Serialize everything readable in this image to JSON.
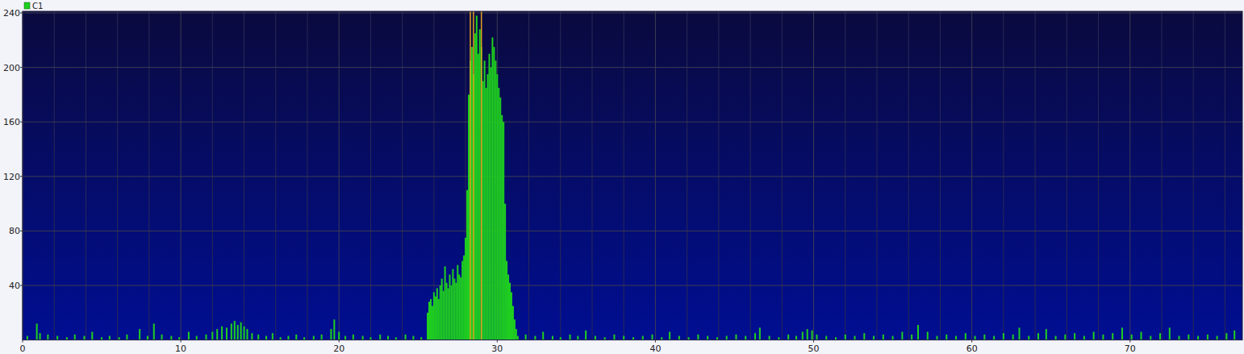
{
  "chart_data": {
    "type": "bar",
    "xlim": [
      0,
      77.1
    ],
    "xticks": [
      0,
      10,
      20,
      30,
      40,
      50,
      60,
      70
    ],
    "minor_xticks": [
      2,
      4,
      6,
      8,
      12,
      14,
      16,
      18,
      22,
      24,
      26,
      28,
      32,
      34,
      36,
      38,
      42,
      44,
      46,
      48,
      52,
      54,
      56,
      58,
      62,
      64,
      66,
      68,
      72,
      74,
      76
    ],
    "ylim": [
      0,
      240
    ],
    "yticks": [
      40,
      80,
      120,
      160,
      200,
      240
    ],
    "grid": true,
    "legend": "top-left",
    "cursors": [
      28.3,
      28.5,
      29.0
    ],
    "x": [
      0.3,
      0.9,
      1.1,
      1.6,
      2.2,
      2.8,
      3.3,
      3.9,
      4.4,
      5.0,
      5.5,
      6.1,
      6.6,
      7.4,
      7.9,
      8.3,
      8.8,
      9.4,
      9.9,
      10.5,
      11.0,
      11.6,
      12.0,
      12.3,
      12.6,
      12.9,
      13.2,
      13.4,
      13.6,
      13.8,
      14.0,
      14.2,
      14.5,
      14.9,
      15.4,
      15.8,
      16.3,
      16.8,
      17.3,
      17.8,
      18.4,
      18.9,
      19.5,
      19.7,
      20.0,
      20.4,
      20.9,
      21.5,
      22.0,
      22.6,
      23.1,
      23.6,
      24.2,
      24.7,
      25.2,
      25.6,
      25.7,
      25.8,
      25.9,
      26.0,
      26.1,
      26.2,
      26.3,
      26.4,
      26.5,
      26.6,
      26.7,
      26.8,
      26.9,
      27.0,
      27.1,
      27.2,
      27.3,
      27.4,
      27.5,
      27.6,
      27.7,
      27.8,
      27.9,
      28.0,
      28.1,
      28.2,
      28.3,
      28.4,
      28.5,
      28.6,
      28.7,
      28.8,
      28.9,
      29.0,
      29.1,
      29.2,
      29.3,
      29.4,
      29.5,
      29.6,
      29.7,
      29.8,
      29.9,
      30.0,
      30.1,
      30.2,
      30.3,
      30.4,
      30.5,
      30.6,
      30.7,
      30.8,
      30.9,
      31.0,
      31.1,
      31.2,
      31.3,
      31.8,
      32.4,
      32.9,
      33.5,
      34.0,
      34.6,
      35.1,
      35.6,
      36.2,
      36.8,
      37.4,
      38.0,
      38.6,
      39.2,
      39.8,
      40.4,
      40.9,
      41.5,
      42.1,
      42.7,
      43.3,
      43.9,
      44.5,
      45.1,
      45.7,
      46.3,
      46.6,
      47.2,
      47.8,
      48.4,
      48.9,
      49.3,
      49.6,
      49.9,
      50.2,
      50.8,
      51.4,
      52.0,
      52.6,
      53.2,
      53.8,
      54.4,
      55.0,
      55.6,
      56.2,
      56.6,
      57.2,
      57.8,
      58.4,
      59.0,
      59.6,
      60.2,
      60.8,
      61.4,
      62.0,
      62.6,
      63.0,
      63.6,
      64.2,
      64.7,
      65.3,
      65.9,
      66.5,
      67.1,
      67.7,
      68.3,
      68.9,
      69.5,
      70.1,
      70.7,
      71.3,
      71.9,
      72.5,
      73.1,
      73.7,
      74.3,
      74.9,
      75.5,
      76.1,
      76.6
    ],
    "series": [
      {
        "name": "C1",
        "color": "#1fd01f",
        "values": [
          3,
          12,
          5,
          4,
          3,
          2,
          4,
          3,
          6,
          2,
          3,
          2,
          4,
          8,
          3,
          12,
          4,
          3,
          2,
          6,
          3,
          4,
          6,
          8,
          10,
          9,
          12,
          14,
          11,
          13,
          10,
          8,
          5,
          4,
          3,
          5,
          2,
          3,
          4,
          2,
          3,
          4,
          8,
          15,
          6,
          3,
          4,
          3,
          2,
          4,
          3,
          2,
          4,
          3,
          2,
          20,
          28,
          30,
          25,
          35,
          32,
          38,
          30,
          40,
          45,
          36,
          54,
          42,
          38,
          48,
          40,
          52,
          45,
          42,
          55,
          48,
          46,
          58,
          62,
          75,
          110,
          180,
          205,
          215,
          195,
          225,
          238,
          210,
          228,
          215,
          190,
          205,
          185,
          195,
          210,
          200,
          222,
          215,
          205,
          195,
          185,
          178,
          165,
          160,
          100,
          58,
          48,
          42,
          35,
          25,
          15,
          8,
          3,
          4,
          3,
          6,
          3,
          2,
          4,
          3,
          7,
          3,
          2,
          4,
          3,
          2,
          3,
          4,
          2,
          6,
          3,
          2,
          4,
          3,
          2,
          3,
          4,
          3,
          5,
          9,
          3,
          2,
          4,
          3,
          6,
          8,
          7,
          4,
          3,
          2,
          4,
          3,
          5,
          3,
          4,
          3,
          6,
          4,
          11,
          6,
          3,
          4,
          3,
          5,
          3,
          4,
          3,
          5,
          4,
          9,
          3,
          5,
          8,
          3,
          4,
          5,
          3,
          6,
          4,
          5,
          9,
          4,
          6,
          3,
          5,
          9,
          3,
          4,
          3,
          4,
          3,
          5,
          7
        ]
      }
    ]
  }
}
